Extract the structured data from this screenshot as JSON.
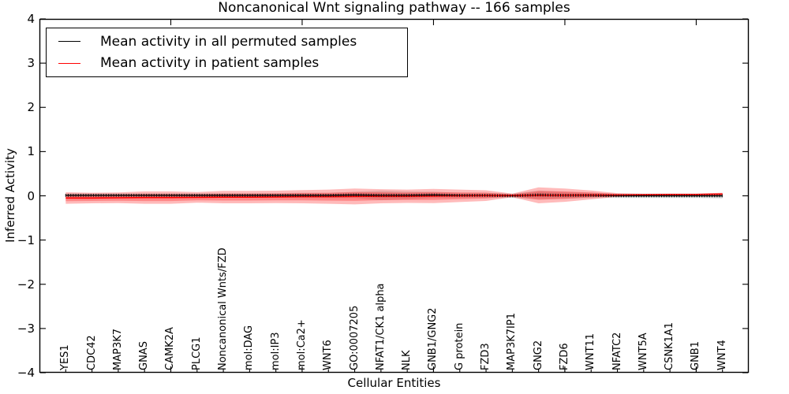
{
  "chart_data": {
    "type": "line",
    "title": "Noncanonical Wnt signaling pathway -- 166 samples",
    "xlabel": "Cellular Entities",
    "ylabel": "Inferred Activity",
    "ylim": [
      -4,
      4
    ],
    "xlim": [
      0,
      27
    ],
    "yticks": [
      4,
      3,
      2,
      1,
      0,
      -1,
      -2,
      -3,
      -4
    ],
    "xticks_major": [
      5,
      10,
      15,
      20,
      25
    ],
    "grid": false,
    "legend_position": "upper-left",
    "entities": [
      "YES1",
      "CDC42",
      "MAP3K7",
      "GNAS",
      "CAMK2A",
      "PLCG1",
      "Noncanonical Wnts/FZD",
      "mol:DAG",
      "mol:IP3",
      "mol:Ca2+",
      "WNT6",
      "GO:0007205",
      "NFAT1/CK1 alpha",
      "NLK",
      "GNB1/GNG2",
      "G protein",
      "FZD3",
      "MAP3K7IP1",
      "GNG2",
      "FZD6",
      "WNT11",
      "NFATC2",
      "WNT5A",
      "CSNK1A1",
      "GNB1",
      "WNT4"
    ],
    "series": [
      {
        "name": "Mean activity in all permuted samples",
        "color": "#000000",
        "values": [
          0.01,
          0.01,
          0.01,
          0.01,
          0.01,
          0.01,
          0.01,
          0.01,
          0.01,
          0.01,
          0.01,
          0.02,
          0.01,
          0.01,
          0.02,
          0.01,
          0.01,
          0.0,
          0.02,
          0.01,
          0.01,
          0.0,
          0.0,
          0.0,
          0.0,
          0.0
        ]
      },
      {
        "name": "Mean activity in patient samples",
        "color": "#ff0000",
        "values": [
          -0.05,
          -0.05,
          -0.045,
          -0.04,
          -0.04,
          -0.035,
          -0.03,
          -0.03,
          -0.025,
          -0.02,
          -0.02,
          -0.015,
          -0.01,
          -0.01,
          -0.005,
          0.0,
          0.005,
          0.01,
          0.01,
          0.015,
          0.02,
          0.02,
          0.025,
          0.03,
          0.03,
          0.04
        ]
      }
    ],
    "bands": [
      {
        "name": "permuted-samples-spread",
        "center_series": 0,
        "color": "rgba(130,130,130,0.25)",
        "half_widths": [
          0.05,
          0.05,
          0.05,
          0.05,
          0.05,
          0.05,
          0.05,
          0.05,
          0.05,
          0.06,
          0.06,
          0.07,
          0.11,
          0.09,
          0.07,
          0.06,
          0.06,
          0.05,
          0.1,
          0.08,
          0.06,
          0.05,
          0.05,
          0.05,
          0.05,
          0.06
        ]
      },
      {
        "name": "patient-samples-spread",
        "center_series": 1,
        "color": "rgba(255,0,0,0.27)",
        "half_widths": [
          0.13,
          0.12,
          0.12,
          0.14,
          0.14,
          0.12,
          0.14,
          0.14,
          0.14,
          0.15,
          0.16,
          0.18,
          0.16,
          0.15,
          0.16,
          0.14,
          0.12,
          0.04,
          0.18,
          0.15,
          0.1,
          0.04,
          0.02,
          0.02,
          0.02,
          0.03
        ]
      }
    ],
    "marker_color": "#111111",
    "axis_color": "#000000",
    "background_color": "#ffffff"
  }
}
